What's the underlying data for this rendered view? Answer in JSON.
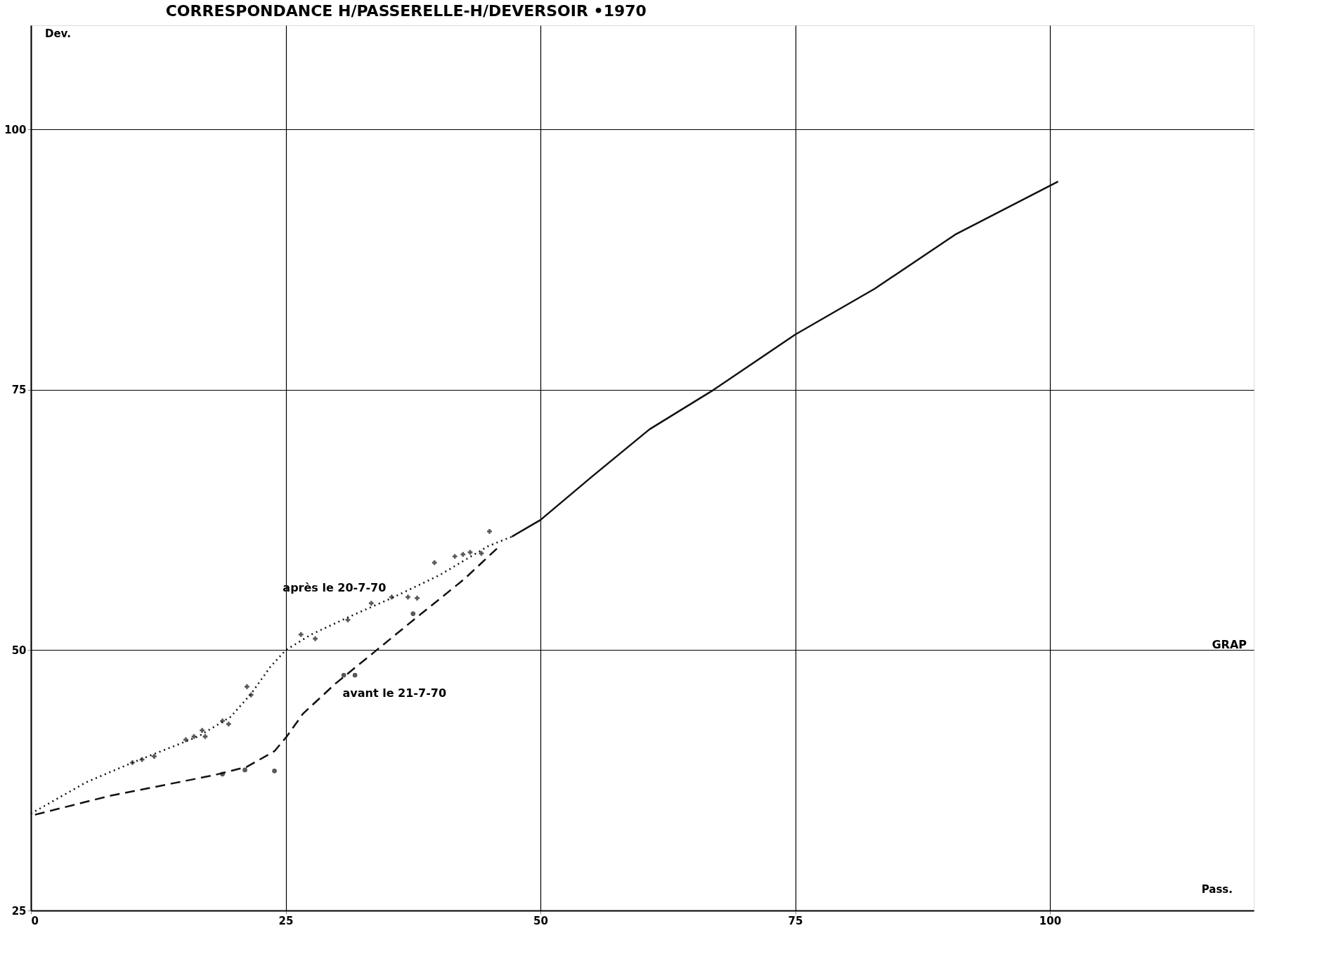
{
  "chart_data": {
    "type": "line",
    "title": "CORRESPONDANCE H/PASSERELLE-H/DEVERSOIR •1970",
    "xlabel": "Pass.",
    "ylabel": "Dev.",
    "xlim": [
      0,
      120
    ],
    "ylim": [
      25,
      110
    ],
    "xticks": [
      0,
      25,
      50,
      75,
      100
    ],
    "yticks": [
      25,
      50,
      75,
      100
    ],
    "grid": true,
    "series": [
      {
        "color": "#111111",
        "line_style": "dotted",
        "x": [
          0,
          5.4,
          9.95,
          16.4,
          19.6,
          21.6,
          23.5,
          25,
          27.5,
          31,
          35.4,
          40.1,
          44.9,
          47.2
        ],
        "values": [
          34.3,
          37.3,
          39.2,
          41.7,
          43.6,
          45.8,
          48.4,
          50,
          51.5,
          53.1,
          55,
          57.2,
          60,
          60.9
        ]
      },
      {
        "color": "#111111",
        "line_style": "dashed",
        "x": [
          0.4,
          7.7,
          18,
          21.2,
          23.9,
          25.1,
          26.7,
          29.9,
          33.8,
          37.8,
          42.5,
          46
        ],
        "values": [
          34.2,
          36,
          38,
          38.8,
          40.3,
          41.7,
          43.9,
          46.8,
          49.9,
          53.1,
          56.8,
          60
        ]
      },
      {
        "color": "#111111",
        "line_style": "solid",
        "x": [
          47.2,
          50,
          55.1,
          60.7,
          67,
          75,
          82.8,
          90.7,
          100.8
        ],
        "values": [
          60.9,
          62.5,
          66.7,
          71.2,
          75,
          80.3,
          84.7,
          89.9,
          95
        ]
      },
      {
        "type": "scatter",
        "color": "#111111",
        "marker": "cross",
        "x": [
          9.96,
          10.9,
          12.1,
          15.2,
          16.0,
          16.8,
          17.1,
          18.8,
          19.4,
          21.2,
          21.6,
          26.5,
          27.9,
          31.1,
          33.4,
          35.4,
          37.0,
          37.9,
          39.6,
          41.6,
          42.4,
          43.1,
          44.2,
          45.0
        ],
        "values": [
          39.2,
          39.5,
          39.8,
          41.4,
          41.7,
          42.3,
          41.7,
          43.2,
          42.9,
          46.5,
          45.7,
          51.5,
          51.1,
          52.9,
          54.5,
          55.1,
          55.1,
          55.0,
          58.4,
          59.0,
          59.2,
          59.4,
          59.3,
          61.4
        ]
      },
      {
        "type": "scatter",
        "color": "#111111",
        "marker": "circle",
        "x": [
          18.8,
          21.0,
          23.9,
          30.7,
          31.8,
          37.5
        ],
        "values": [
          38.1,
          38.5,
          38.4,
          47.6,
          47.6,
          53.5
        ]
      }
    ],
    "annotations": [
      {
        "text": "après le 20-7-70",
        "x": 35.4,
        "y": 55
      },
      {
        "text": "avant le 21-7-70",
        "x": 29.9,
        "y": 46.8
      },
      "GRAP"
    ]
  }
}
